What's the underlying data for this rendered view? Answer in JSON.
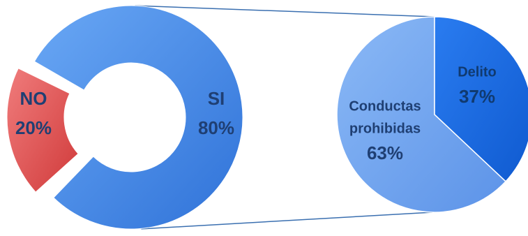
{
  "chart_data": [
    {
      "type": "pie",
      "style": "donut-exploded",
      "slices": [
        {
          "label": "SI",
          "value_label": "80%",
          "value": 80,
          "color": "#4b8bea"
        },
        {
          "label": "NO",
          "value_label": "20%",
          "value": 20,
          "color": "#e05050"
        }
      ]
    },
    {
      "type": "pie",
      "breakdown_of": "SI",
      "slices": [
        {
          "label_lines": [
            "Conductas",
            "prohibidas"
          ],
          "value_label": "63%",
          "value": 63,
          "color": "#6aa2f0"
        },
        {
          "label_lines": [
            "Delito"
          ],
          "value_label": "37%",
          "value": 37,
          "color": "#1f6fe6"
        }
      ]
    }
  ],
  "colors": {
    "connector": "#3a6fb0",
    "label_text": "#1f3f73",
    "label_text_on_dark": "#103a70"
  }
}
